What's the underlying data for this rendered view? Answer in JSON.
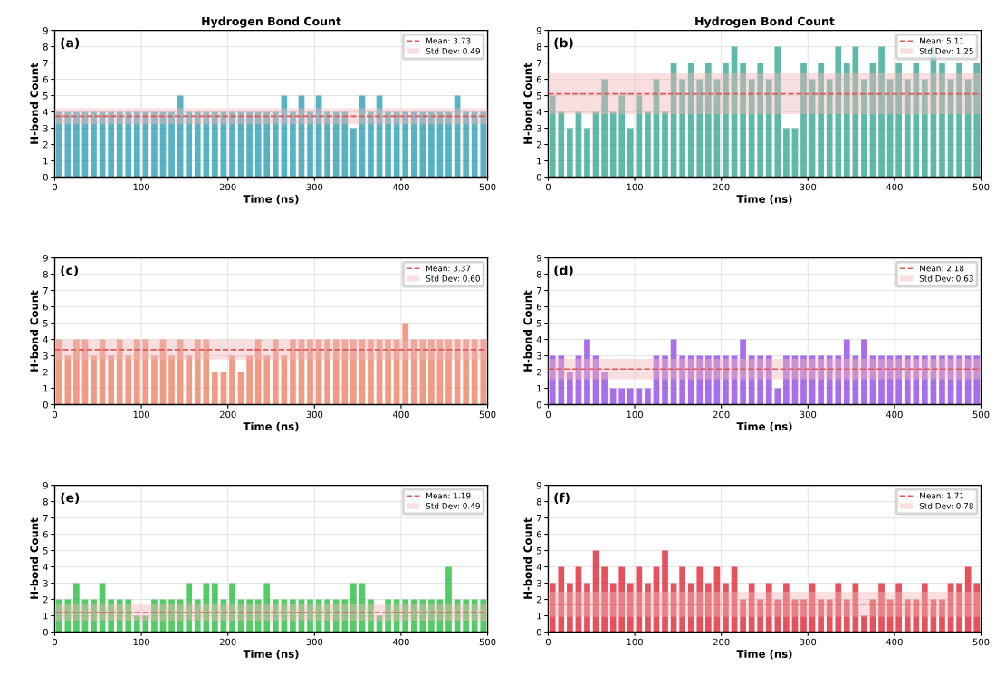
{
  "chart_data": [
    {
      "type": "bar",
      "title": "Hydrogen Bond Count",
      "xlabel": "Time (ns)",
      "ylabel": "H-bond Count",
      "annotations": [
        "(a)"
      ],
      "x": [
        5,
        15,
        25,
        35,
        45,
        55,
        65,
        75,
        85,
        95,
        105,
        115,
        125,
        135,
        145,
        155,
        165,
        175,
        185,
        195,
        205,
        215,
        225,
        235,
        245,
        255,
        265,
        275,
        285,
        295,
        305,
        315,
        325,
        335,
        345,
        355,
        365,
        375,
        385,
        395,
        405,
        415,
        425,
        435,
        445,
        455,
        465,
        475,
        485,
        495
      ],
      "series": [
        {
          "color": "#3aa6b8",
          "values": [
            4,
            4,
            4,
            4,
            4,
            4,
            4,
            4,
            4,
            4,
            4,
            4,
            4,
            4,
            5,
            4,
            4,
            4,
            4,
            4,
            4,
            4,
            4,
            4,
            4,
            4,
            5,
            4,
            5,
            4,
            5,
            4,
            4,
            4,
            3,
            5,
            4,
            5,
            4,
            4,
            4,
            4,
            4,
            4,
            4,
            4,
            5,
            4,
            4,
            4
          ]
        }
      ],
      "xlim": [
        0,
        500
      ],
      "xticks": [
        0,
        100,
        200,
        300,
        400,
        500
      ],
      "ylim": [
        0,
        9
      ],
      "yticks": [
        0,
        1,
        2,
        3,
        4,
        5,
        6,
        7,
        8,
        9
      ],
      "grid": true,
      "legend": "top right",
      "ref_lines": [
        {
          "axis": "y",
          "value": 3.73,
          "label": "Mean: 3.73",
          "color": "#e05555",
          "line_style": "dashed"
        }
      ],
      "bands": [
        {
          "axis": "y",
          "from": 3.24,
          "to": 4.22,
          "label": "Std Dev: 0.49",
          "color": "#f2b8b8"
        }
      ]
    },
    {
      "type": "bar",
      "title": "Hydrogen Bond Count",
      "xlabel": "Time (ns)",
      "ylabel": "H-bond Count",
      "annotations": [
        "(b)"
      ],
      "x": [
        5,
        15,
        25,
        35,
        45,
        55,
        65,
        75,
        85,
        95,
        105,
        115,
        125,
        135,
        145,
        155,
        165,
        175,
        185,
        195,
        205,
        215,
        225,
        235,
        245,
        255,
        265,
        275,
        285,
        295,
        305,
        315,
        325,
        335,
        345,
        355,
        365,
        375,
        385,
        395,
        405,
        415,
        425,
        435,
        445,
        455,
        465,
        475,
        485,
        495
      ],
      "series": [
        {
          "color": "#42ad9a",
          "values": [
            5,
            4,
            3,
            4,
            3,
            4,
            6,
            4,
            5,
            3,
            5,
            4,
            6,
            4,
            7,
            6,
            7,
            6,
            7,
            6,
            7,
            8,
            7,
            6,
            7,
            6,
            8,
            3,
            3,
            7,
            6,
            7,
            6,
            8,
            7,
            8,
            6,
            7,
            8,
            6,
            7,
            6,
            7,
            6,
            8,
            7,
            6,
            7,
            6,
            7
          ]
        }
      ],
      "xlim": [
        0,
        500
      ],
      "xticks": [
        0,
        100,
        200,
        300,
        400,
        500
      ],
      "ylim": [
        0,
        9
      ],
      "yticks": [
        0,
        1,
        2,
        3,
        4,
        5,
        6,
        7,
        8,
        9
      ],
      "grid": true,
      "legend": "top right",
      "ref_lines": [
        {
          "axis": "y",
          "value": 5.11,
          "label": "Mean: 5.11",
          "color": "#e05555",
          "line_style": "dashed"
        }
      ],
      "bands": [
        {
          "axis": "y",
          "from": 3.86,
          "to": 6.36,
          "label": "Std Dev: 1.25",
          "color": "#f2b8b8"
        }
      ]
    },
    {
      "type": "bar",
      "xlabel": "Time (ns)",
      "ylabel": "H-bond Count",
      "annotations": [
        "(c)"
      ],
      "x": [
        5,
        15,
        25,
        35,
        45,
        55,
        65,
        75,
        85,
        95,
        105,
        115,
        125,
        135,
        145,
        155,
        165,
        175,
        185,
        195,
        205,
        215,
        225,
        235,
        245,
        255,
        265,
        275,
        285,
        295,
        305,
        315,
        325,
        335,
        345,
        355,
        365,
        375,
        385,
        395,
        405,
        415,
        425,
        435,
        445,
        455,
        465,
        475,
        485,
        495
      ],
      "series": [
        {
          "color": "#ee8a70",
          "values": [
            4,
            3,
            4,
            4,
            3,
            4,
            3,
            4,
            3,
            4,
            4,
            3,
            4,
            3,
            4,
            3,
            4,
            4,
            2,
            2,
            3,
            2,
            3,
            4,
            3,
            4,
            3,
            4,
            4,
            4,
            4,
            4,
            4,
            4,
            4,
            4,
            4,
            4,
            4,
            4,
            5,
            4,
            4,
            4,
            4,
            4,
            4,
            4,
            4,
            4
          ]
        }
      ],
      "xlim": [
        0,
        500
      ],
      "xticks": [
        0,
        100,
        200,
        300,
        400,
        500
      ],
      "ylim": [
        0,
        9
      ],
      "yticks": [
        0,
        1,
        2,
        3,
        4,
        5,
        6,
        7,
        8,
        9
      ],
      "grid": true,
      "legend": "top right",
      "ref_lines": [
        {
          "axis": "y",
          "value": 3.37,
          "label": "Mean: 3.37",
          "color": "#e05555",
          "line_style": "dashed"
        }
      ],
      "bands": [
        {
          "axis": "y",
          "from": 2.77,
          "to": 3.97,
          "label": "Std Dev: 0.60",
          "color": "#f2b8b8"
        }
      ]
    },
    {
      "type": "bar",
      "xlabel": "Time (ns)",
      "ylabel": "H-bond Count",
      "annotations": [
        "(d)"
      ],
      "x": [
        5,
        15,
        25,
        35,
        45,
        55,
        65,
        75,
        85,
        95,
        105,
        115,
        125,
        135,
        145,
        155,
        165,
        175,
        185,
        195,
        205,
        215,
        225,
        235,
        245,
        255,
        265,
        275,
        285,
        295,
        305,
        315,
        325,
        335,
        345,
        355,
        365,
        375,
        385,
        395,
        405,
        415,
        425,
        435,
        445,
        455,
        465,
        475,
        485,
        495
      ],
      "series": [
        {
          "color": "#9a55e8",
          "values": [
            3,
            3,
            2,
            3,
            4,
            3,
            2,
            1,
            1,
            1,
            1,
            1,
            3,
            3,
            4,
            3,
            3,
            3,
            3,
            3,
            3,
            3,
            4,
            3,
            3,
            3,
            1,
            3,
            3,
            3,
            3,
            3,
            3,
            3,
            4,
            3,
            4,
            3,
            3,
            3,
            3,
            3,
            3,
            3,
            3,
            3,
            3,
            3,
            3,
            3
          ]
        }
      ],
      "xlim": [
        0,
        500
      ],
      "xticks": [
        0,
        100,
        200,
        300,
        400,
        500
      ],
      "ylim": [
        0,
        9
      ],
      "yticks": [
        0,
        1,
        2,
        3,
        4,
        5,
        6,
        7,
        8,
        9
      ],
      "grid": true,
      "legend": "top right",
      "ref_lines": [
        {
          "axis": "y",
          "value": 2.18,
          "label": "Mean: 2.18",
          "color": "#e05555",
          "line_style": "dashed"
        }
      ],
      "bands": [
        {
          "axis": "y",
          "from": 1.55,
          "to": 2.81,
          "label": "Std Dev: 0.63",
          "color": "#f2b8b8"
        }
      ]
    },
    {
      "type": "bar",
      "xlabel": "Time (ns)",
      "ylabel": "H-bond Count",
      "annotations": [
        "(e)"
      ],
      "x": [
        5,
        15,
        25,
        35,
        45,
        55,
        65,
        75,
        85,
        95,
        105,
        115,
        125,
        135,
        145,
        155,
        165,
        175,
        185,
        195,
        205,
        215,
        225,
        235,
        245,
        255,
        265,
        275,
        285,
        295,
        305,
        315,
        325,
        335,
        345,
        355,
        365,
        375,
        385,
        395,
        405,
        415,
        425,
        435,
        445,
        455,
        465,
        475,
        485,
        495
      ],
      "series": [
        {
          "color": "#35c24c",
          "values": [
            2,
            2,
            3,
            2,
            2,
            3,
            2,
            2,
            2,
            1,
            1,
            2,
            2,
            2,
            2,
            3,
            2,
            3,
            3,
            2,
            3,
            2,
            2,
            2,
            3,
            2,
            2,
            2,
            2,
            2,
            2,
            2,
            2,
            2,
            3,
            3,
            2,
            1,
            2,
            2,
            2,
            2,
            2,
            2,
            2,
            4,
            2,
            2,
            2,
            2
          ]
        }
      ],
      "xlim": [
        0,
        500
      ],
      "xticks": [
        0,
        100,
        200,
        300,
        400,
        500
      ],
      "ylim": [
        0,
        9
      ],
      "yticks": [
        0,
        1,
        2,
        3,
        4,
        5,
        6,
        7,
        8,
        9
      ],
      "grid": true,
      "legend": "top right",
      "ref_lines": [
        {
          "axis": "y",
          "value": 1.19,
          "label": "Mean: 1.19",
          "color": "#e05555",
          "line_style": "dashed"
        }
      ],
      "bands": [
        {
          "axis": "y",
          "from": 0.7,
          "to": 1.68,
          "label": "Std Dev: 0.49",
          "color": "#f2b8b8"
        }
      ]
    },
    {
      "type": "bar",
      "xlabel": "Time (ns)",
      "ylabel": "H-bond Count",
      "annotations": [
        "(f)"
      ],
      "x": [
        5,
        15,
        25,
        35,
        45,
        55,
        65,
        75,
        85,
        95,
        105,
        115,
        125,
        135,
        145,
        155,
        165,
        175,
        185,
        195,
        205,
        215,
        225,
        235,
        245,
        255,
        265,
        275,
        285,
        295,
        305,
        315,
        325,
        335,
        345,
        355,
        365,
        375,
        385,
        395,
        405,
        415,
        425,
        435,
        445,
        455,
        465,
        475,
        485,
        495
      ],
      "series": [
        {
          "color": "#e2323f",
          "values": [
            3,
            4,
            3,
            4,
            3,
            5,
            4,
            3,
            4,
            3,
            4,
            3,
            4,
            5,
            3,
            4,
            3,
            4,
            3,
            4,
            3,
            4,
            2,
            3,
            2,
            3,
            2,
            3,
            2,
            2,
            3,
            2,
            2,
            3,
            2,
            3,
            1,
            2,
            3,
            2,
            3,
            2,
            2,
            3,
            2,
            2,
            3,
            3,
            4,
            3
          ]
        }
      ],
      "xlim": [
        0,
        500
      ],
      "xticks": [
        0,
        100,
        200,
        300,
        400,
        500
      ],
      "ylim": [
        0,
        9
      ],
      "yticks": [
        0,
        1,
        2,
        3,
        4,
        5,
        6,
        7,
        8,
        9
      ],
      "grid": true,
      "legend": "top right",
      "ref_lines": [
        {
          "axis": "y",
          "value": 1.71,
          "label": "Mean: 1.71",
          "color": "#e05555",
          "line_style": "dashed"
        }
      ],
      "bands": [
        {
          "axis": "y",
          "from": 0.93,
          "to": 2.49,
          "label": "Std Dev: 0.78",
          "color": "#f2b8b8"
        }
      ]
    }
  ]
}
